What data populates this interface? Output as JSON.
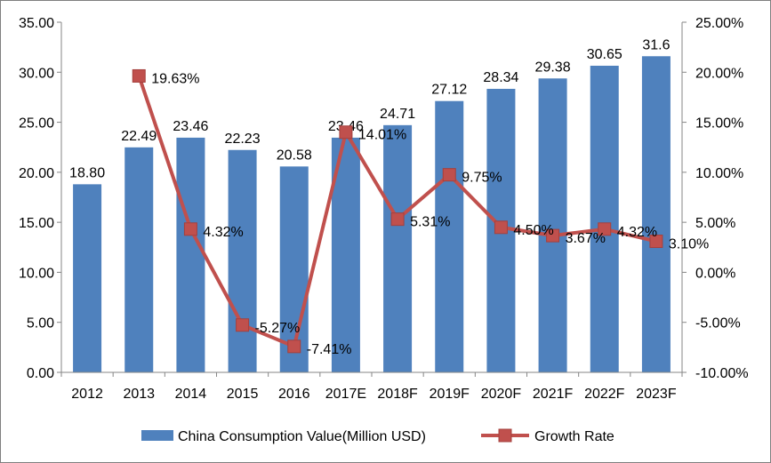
{
  "chart_data": {
    "type": "bar",
    "combo": "bar + line (secondary axis)",
    "title": "",
    "categories": [
      "2012",
      "2013",
      "2014",
      "2015",
      "2016",
      "2017E",
      "2018F",
      "2019F",
      "2020F",
      "2021F",
      "2022F",
      "2023F"
    ],
    "series": [
      {
        "name": "China Consumption Value(Million USD)",
        "type": "bar",
        "axis": "left",
        "color": "#4f81bd",
        "values": [
          18.8,
          22.49,
          23.46,
          22.23,
          20.58,
          23.46,
          24.71,
          27.12,
          28.34,
          29.38,
          30.65,
          31.6
        ],
        "labels": [
          "18.80",
          "22.49",
          "23.46",
          "22.23",
          "20.58",
          "23.46",
          "24.71",
          "27.12",
          "28.34",
          "29.38",
          "30.65",
          "31.6"
        ]
      },
      {
        "name": "Growth Rate",
        "type": "line",
        "axis": "right",
        "color": "#c0504d",
        "marker": "square",
        "points": [
          {
            "category": "2013",
            "value": 19.63,
            "label": "19.63%"
          },
          {
            "category": "2014",
            "value": 4.32,
            "label": "4.32%"
          },
          {
            "category": "2015",
            "value": -5.27,
            "label": "-5.27%"
          },
          {
            "category": "2016",
            "value": -7.41,
            "label": "-7.41%"
          },
          {
            "category": "2017E",
            "value": 14.01,
            "label": "14.01%"
          },
          {
            "category": "2018F",
            "value": 5.31,
            "label": "5.31%"
          },
          {
            "category": "2019F",
            "value": 9.75,
            "label": "9.75%"
          },
          {
            "category": "2020F",
            "value": 4.5,
            "label": "4.50%"
          },
          {
            "category": "2021F",
            "value": 3.67,
            "label": "3.67%"
          },
          {
            "category": "2022F",
            "value": 4.32,
            "label": "4.32%"
          },
          {
            "category": "2023F",
            "value": 3.1,
            "label": "3.10%"
          }
        ]
      }
    ],
    "y_left": {
      "min": 0,
      "max": 35,
      "ticks": [
        "0.00",
        "5.00",
        "10.00",
        "15.00",
        "20.00",
        "25.00",
        "30.00",
        "35.00"
      ]
    },
    "y_right": {
      "min": -10,
      "max": 25,
      "ticks": [
        "-10.00%",
        "-5.00%",
        "0.00%",
        "5.00%",
        "10.00%",
        "15.00%",
        "20.00%",
        "25.00%"
      ]
    },
    "grid": false,
    "legend": {
      "position": "bottom",
      "entries": [
        "China Consumption Value(Million USD)",
        "Growth Rate"
      ]
    }
  }
}
